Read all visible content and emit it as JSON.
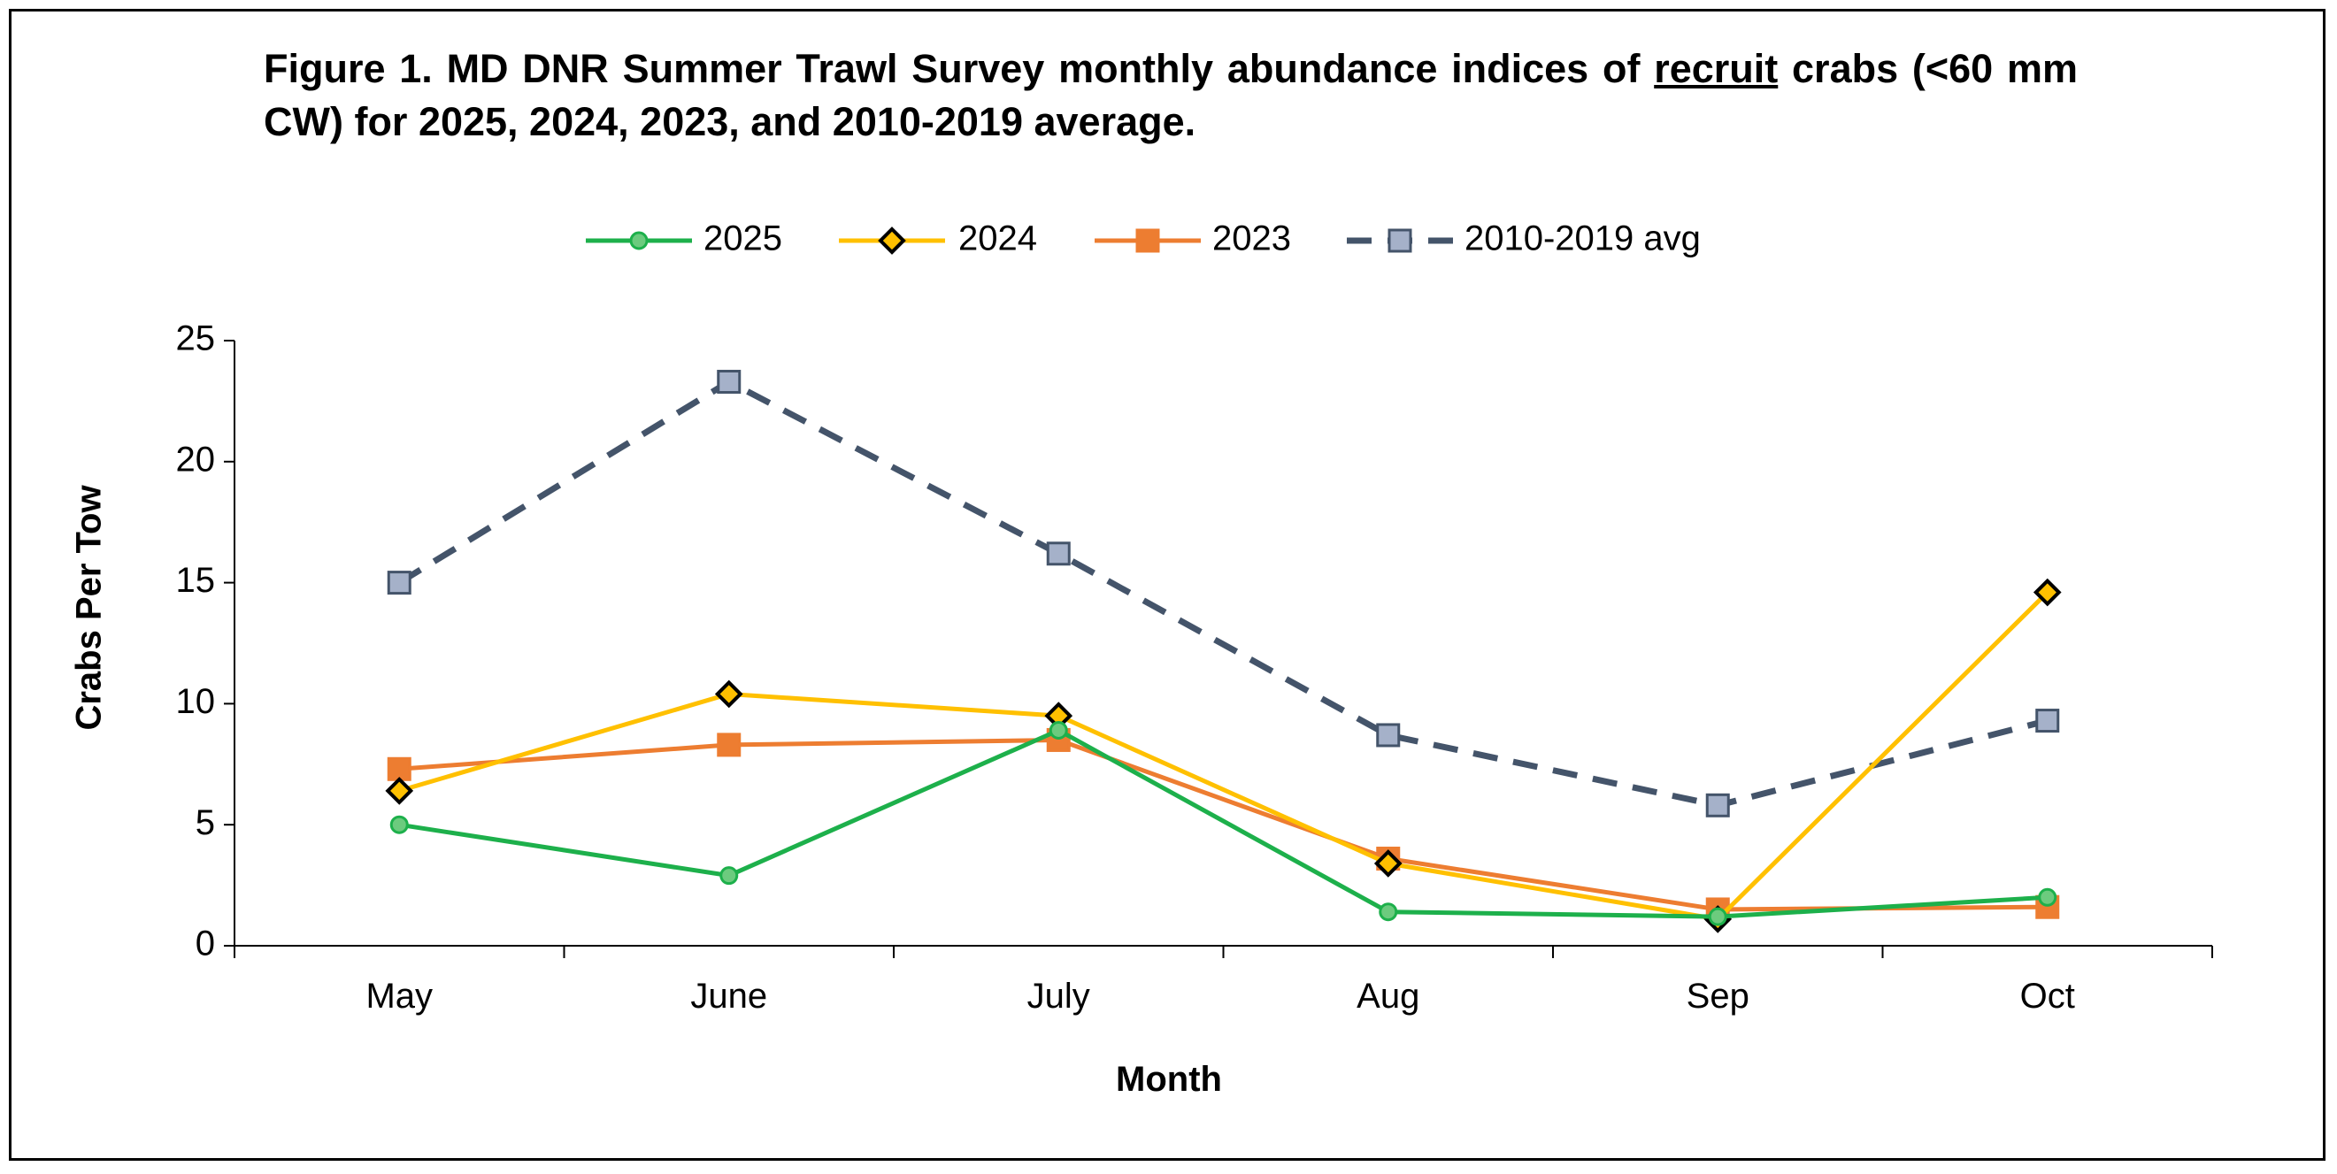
{
  "title": {
    "part1": "Figure 1.  MD DNR Summer Trawl Survey monthly abundance indices of ",
    "underlined": "recruit",
    "part2": " crabs (<60 mm CW) for 2025, 2024, 2023, and 2010-2019 average."
  },
  "chart_data": {
    "type": "line",
    "categories": [
      "May",
      "June",
      "July",
      "Aug",
      "Sep",
      "Oct"
    ],
    "xlabel": "Month",
    "ylabel": "Crabs Per Tow",
    "ylim": [
      0,
      25
    ],
    "yticks": [
      0,
      5,
      10,
      15,
      20,
      25
    ],
    "grid": false,
    "legend_position": "top",
    "series": [
      {
        "name": "2025",
        "values": [
          5.0,
          2.9,
          8.9,
          1.4,
          1.2,
          2.0
        ],
        "color": "#1DB04B",
        "marker": "circle",
        "dashed": false
      },
      {
        "name": "2024",
        "values": [
          6.4,
          10.4,
          9.5,
          3.4,
          1.1,
          14.6
        ],
        "color": "#FFC000",
        "marker": "diamond",
        "dashed": false
      },
      {
        "name": "2023",
        "values": [
          7.3,
          8.3,
          8.5,
          3.6,
          1.5,
          1.6
        ],
        "color": "#ED7D31",
        "marker": "square",
        "dashed": false
      },
      {
        "name": "2010-2019 avg",
        "values": [
          15.0,
          23.3,
          16.2,
          8.7,
          5.8,
          9.3
        ],
        "color": "#44546A",
        "marker": "square",
        "dashed": true
      }
    ]
  }
}
